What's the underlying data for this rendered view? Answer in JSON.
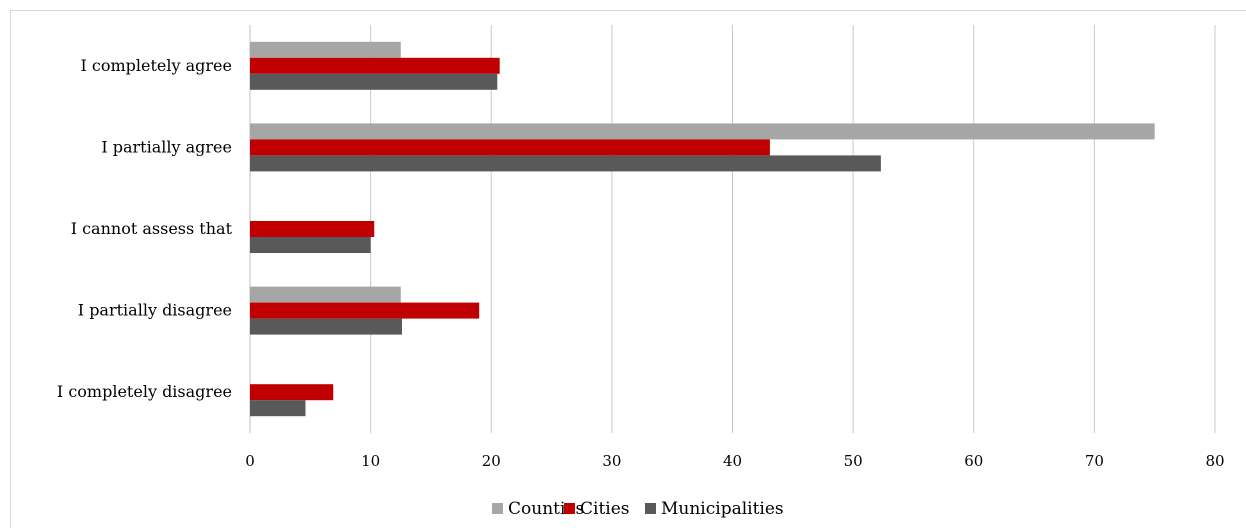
{
  "chart_data": {
    "type": "bar",
    "orientation": "horizontal",
    "categories": [
      "I completely agree",
      "I partially agree",
      "I cannot assess that",
      "I partially disagree",
      "I completely disagree"
    ],
    "series": [
      {
        "name": "Counties",
        "color": "#a6a6a6",
        "values": [
          12.5,
          75,
          0,
          12.5,
          0
        ]
      },
      {
        "name": "Cities",
        "color": "#c00000",
        "values": [
          20.7,
          43.1,
          10.3,
          19.0,
          6.9
        ]
      },
      {
        "name": "Municipalities",
        "color": "#595959",
        "values": [
          20.5,
          52.3,
          10.0,
          12.6,
          4.6
        ]
      }
    ],
    "xlim": [
      0,
      80
    ],
    "xticks": [
      "0",
      "10",
      "20",
      "30",
      "40",
      "50",
      "60",
      "70",
      "80"
    ],
    "grid": "vertical",
    "legend": "bottom-center"
  }
}
